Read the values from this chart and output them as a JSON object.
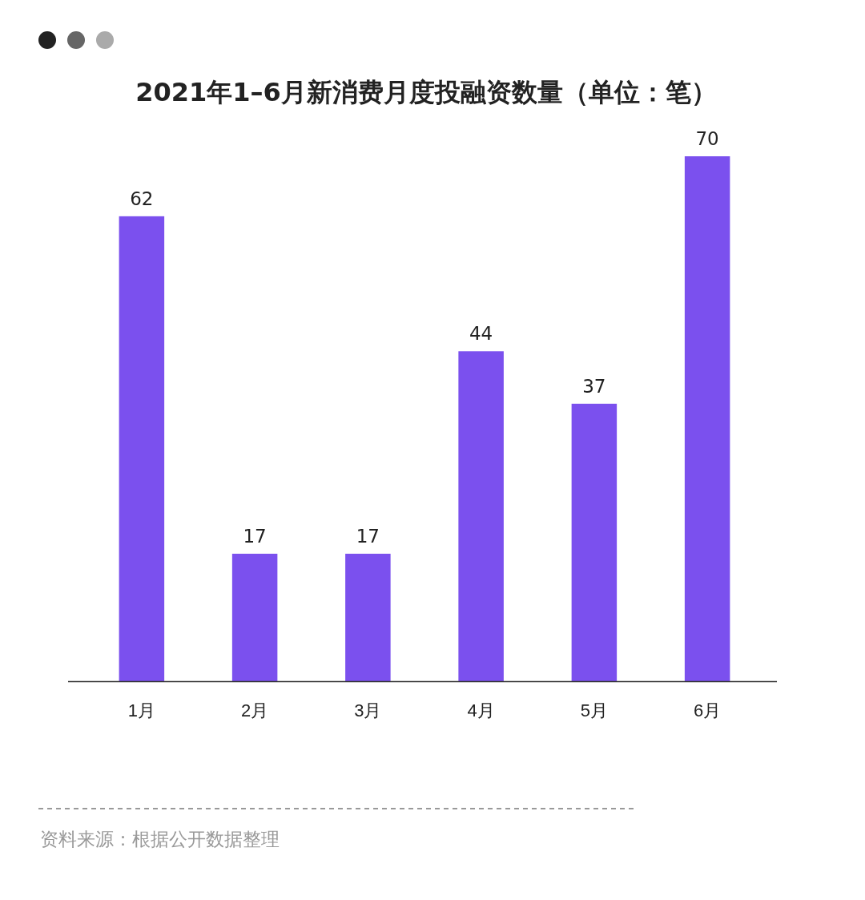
{
  "chart_data": {
    "type": "bar",
    "title": "2021年1–6月新消费月度投融资数量（单位：笔）",
    "categories": [
      "1月",
      "2月",
      "3月",
      "4月",
      "5月",
      "6月"
    ],
    "values": [
      62,
      17,
      17,
      44,
      37,
      70
    ],
    "color": "#7b50ee",
    "data_labels": true,
    "annotations": [
      "资料来源：根据公开数据整理"
    ]
  }
}
